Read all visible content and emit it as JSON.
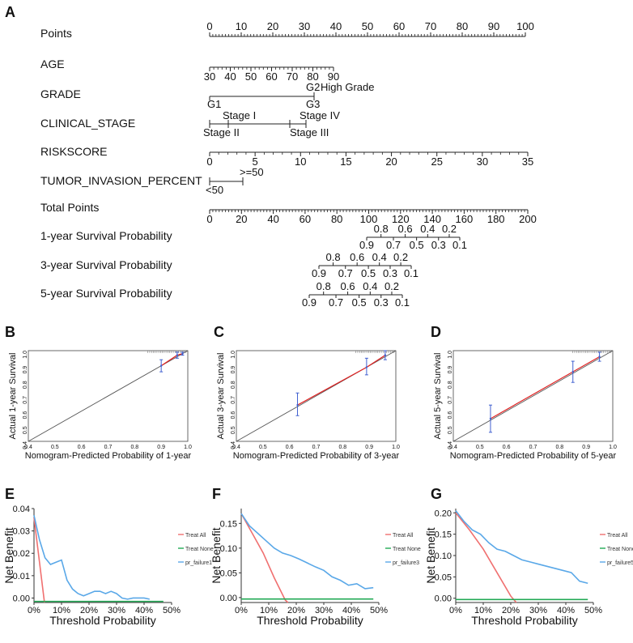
{
  "panel_labels": {
    "A": "A",
    "B": "B",
    "C": "C",
    "D": "D",
    "E": "E",
    "F": "F",
    "G": "G"
  },
  "nomogram": {
    "rows": [
      {
        "label": "Points"
      },
      {
        "label": "AGE"
      },
      {
        "label": "GRADE"
      },
      {
        "label": "CLINICAL_STAGE"
      },
      {
        "label": "RISKSCORE"
      },
      {
        "label": "TUMOR_INVASION_PERCENT"
      },
      {
        "label": "Total Points"
      },
      {
        "label": "1-year Survival Probability"
      },
      {
        "label": "3-year Survival Probability"
      },
      {
        "label": "5-year Survival Probability"
      }
    ],
    "points_ticks": [
      "0",
      "10",
      "20",
      "30",
      "40",
      "50",
      "60",
      "70",
      "80",
      "90",
      "100"
    ],
    "age_ticks": [
      "30",
      "40",
      "50",
      "60",
      "70",
      "80",
      "90"
    ],
    "grade": {
      "g2": "G2",
      "high": "High Grade",
      "g1": "G1",
      "g3": "G3"
    },
    "stage": {
      "s1": "Stage I",
      "s4": "Stage IV",
      "s2": "Stage II",
      "s3": "Stage III"
    },
    "riskscore_ticks": [
      "0",
      "5",
      "10",
      "15",
      "20",
      "25",
      "30",
      "35"
    ],
    "tumor": {
      "high": ">=50",
      "low": "<50"
    },
    "total_ticks": [
      "0",
      "20",
      "40",
      "60",
      "80",
      "100",
      "120",
      "140",
      "160",
      "180",
      "200"
    ],
    "surv1": {
      "top": [
        "0.8",
        "0.6",
        "0.4",
        "0.2"
      ],
      "bottom": [
        "0.9",
        "0.7",
        "0.5",
        "0.3",
        "0.1"
      ]
    },
    "surv3": {
      "top": [
        "0.8",
        "0.6",
        "0.4",
        "0.2"
      ],
      "bottom": [
        "0.9",
        "0.7",
        "0.5",
        "0.3",
        "0.1"
      ]
    },
    "surv5": {
      "top": [
        "0.8",
        "0.6",
        "0.4",
        "0.2"
      ],
      "bottom": [
        "0.9",
        "0.7",
        "0.5",
        "0.3",
        "0.1"
      ]
    }
  },
  "chart_data": [
    {
      "panel": "B",
      "type": "line",
      "title": "",
      "xlabel": "Nomogram-Predicted Probability of 1-year",
      "ylabel": "Actual 1-year Survival",
      "xlim": [
        0.4,
        1.0
      ],
      "ylim": [
        0.4,
        1.0
      ],
      "x_ticks": [
        "0.4",
        "0.5",
        "0.6",
        "0.7",
        "0.8",
        "0.9",
        "1.0"
      ],
      "y_ticks": [
        "0.4",
        "0.5",
        "0.6",
        "0.7",
        "0.8",
        "0.9",
        "1.0"
      ],
      "points": [
        {
          "x": 0.9,
          "y": 0.9,
          "lo": 0.86,
          "hi": 0.94
        },
        {
          "x": 0.96,
          "y": 0.97,
          "lo": 0.95,
          "hi": 0.99
        },
        {
          "x": 0.98,
          "y": 0.98,
          "lo": 0.97,
          "hi": 0.99
        }
      ]
    },
    {
      "panel": "C",
      "type": "line",
      "title": "",
      "xlabel": "Nomogram-Predicted Probability of 3-year",
      "ylabel": "Actual 3-year Survival",
      "xlim": [
        0.4,
        1.0
      ],
      "ylim": [
        0.4,
        1.0
      ],
      "x_ticks": [
        "0.4",
        "0.5",
        "0.6",
        "0.7",
        "0.8",
        "0.9",
        "1.0"
      ],
      "y_ticks": [
        "0.4",
        "0.5",
        "0.6",
        "0.7",
        "0.8",
        "0.9",
        "1.0"
      ],
      "points": [
        {
          "x": 0.63,
          "y": 0.64,
          "lo": 0.57,
          "hi": 0.72
        },
        {
          "x": 0.89,
          "y": 0.89,
          "lo": 0.84,
          "hi": 0.95
        },
        {
          "x": 0.96,
          "y": 0.97,
          "lo": 0.94,
          "hi": 1.0
        }
      ]
    },
    {
      "panel": "D",
      "type": "line",
      "title": "",
      "xlabel": "Nomogram-Predicted Probability of 5-year",
      "ylabel": "Actual 5-year Survival",
      "xlim": [
        0.4,
        1.0
      ],
      "ylim": [
        0.4,
        1.0
      ],
      "x_ticks": [
        "0.4",
        "0.5",
        "0.6",
        "0.7",
        "0.8",
        "0.9",
        "1.0"
      ],
      "y_ticks": [
        "0.4",
        "0.5",
        "0.6",
        "0.7",
        "0.8",
        "0.9",
        "1.0"
      ],
      "points": [
        {
          "x": 0.54,
          "y": 0.55,
          "lo": 0.46,
          "hi": 0.64
        },
        {
          "x": 0.85,
          "y": 0.86,
          "lo": 0.79,
          "hi": 0.93
        },
        {
          "x": 0.95,
          "y": 0.96,
          "lo": 0.93,
          "hi": 0.99
        }
      ]
    },
    {
      "panel": "E",
      "type": "line",
      "xlabel": "Threshold Probability",
      "ylabel": "Net Benefit",
      "xlim": [
        0,
        50
      ],
      "ylim": [
        -0.002,
        0.04
      ],
      "x_ticks": [
        "0%",
        "10%",
        "20%",
        "30%",
        "40%",
        "50%"
      ],
      "y_ticks": [
        "0.00",
        "0.01",
        "0.02",
        "0.03",
        "0.04"
      ],
      "y_tick_values": [
        0,
        0.01,
        0.02,
        0.03,
        0.04
      ],
      "series": [
        {
          "name": "Treat All",
          "color": "#f07070",
          "x": [
            0,
            1,
            2,
            3,
            3.8
          ],
          "y": [
            0.036,
            0.026,
            0.016,
            0.006,
            -0.002
          ]
        },
        {
          "name": "Treat None",
          "color": "#22aa55",
          "x": [
            0,
            47
          ],
          "y": [
            -0.0015,
            -0.0015
          ]
        },
        {
          "name": "pr_failure1",
          "color": "#5aa8e8",
          "x": [
            0,
            2,
            4,
            6,
            8,
            10,
            12,
            14,
            16,
            18,
            20,
            22,
            24,
            26,
            28,
            30,
            32,
            34,
            36,
            38,
            40,
            42
          ],
          "y": [
            0.037,
            0.026,
            0.018,
            0.015,
            0.016,
            0.017,
            0.008,
            0.004,
            0.002,
            0.001,
            0.002,
            0.003,
            0.003,
            0.002,
            0.003,
            0.002,
            0.0,
            -0.0005,
            0.0,
            0.0,
            0.0,
            -0.0005
          ]
        }
      ]
    },
    {
      "panel": "F",
      "type": "line",
      "xlabel": "Threshold Probability",
      "ylabel": "Net Benefit",
      "xlim": [
        0,
        50
      ],
      "ylim": [
        -0.01,
        0.18
      ],
      "x_ticks": [
        "0%",
        "10%",
        "20%",
        "30%",
        "40%",
        "50%"
      ],
      "y_ticks": [
        "0.00",
        "0.05",
        "0.10",
        "0.15"
      ],
      "y_tick_values": [
        0,
        0.05,
        0.1,
        0.15
      ],
      "series": [
        {
          "name": "Treat All",
          "color": "#f07070",
          "x": [
            0,
            4,
            8,
            12,
            16,
            17
          ],
          "y": [
            0.17,
            0.13,
            0.09,
            0.04,
            -0.005,
            -0.01
          ]
        },
        {
          "name": "Treat None",
          "color": "#22aa55",
          "x": [
            0,
            48
          ],
          "y": [
            -0.003,
            -0.003
          ]
        },
        {
          "name": "pr_failure3",
          "color": "#5aa8e8",
          "x": [
            0,
            3,
            6,
            9,
            12,
            15,
            18,
            21,
            24,
            27,
            30,
            33,
            36,
            39,
            42,
            45,
            48
          ],
          "y": [
            0.17,
            0.145,
            0.13,
            0.115,
            0.1,
            0.09,
            0.085,
            0.078,
            0.07,
            0.062,
            0.055,
            0.042,
            0.035,
            0.025,
            0.028,
            0.018,
            0.02
          ]
        }
      ]
    },
    {
      "panel": "G",
      "type": "line",
      "xlabel": "Threshold Probability",
      "ylabel": "Net Benefit",
      "xlim": [
        0,
        50
      ],
      "ylim": [
        -0.01,
        0.21
      ],
      "x_ticks": [
        "0%",
        "10%",
        "20%",
        "30%",
        "40%",
        "50%"
      ],
      "y_ticks": [
        "0.00",
        "0.05",
        "0.10",
        "0.15",
        "0.20"
      ],
      "y_tick_values": [
        0,
        0.05,
        0.1,
        0.15,
        0.2
      ],
      "series": [
        {
          "name": "Treat All",
          "color": "#f07070",
          "x": [
            0,
            5,
            10,
            15,
            20,
            22
          ],
          "y": [
            0.2,
            0.16,
            0.115,
            0.06,
            0.005,
            -0.01
          ]
        },
        {
          "name": "Treat None",
          "color": "#22aa55",
          "x": [
            0,
            48
          ],
          "y": [
            -0.003,
            -0.003
          ]
        },
        {
          "name": "pr_failure5",
          "color": "#5aa8e8",
          "x": [
            0,
            3,
            6,
            9,
            12,
            15,
            18,
            21,
            24,
            27,
            30,
            33,
            36,
            39,
            42,
            45,
            48
          ],
          "y": [
            0.205,
            0.18,
            0.16,
            0.15,
            0.13,
            0.115,
            0.11,
            0.1,
            0.09,
            0.085,
            0.08,
            0.075,
            0.07,
            0.065,
            0.06,
            0.04,
            0.035
          ]
        }
      ]
    }
  ]
}
